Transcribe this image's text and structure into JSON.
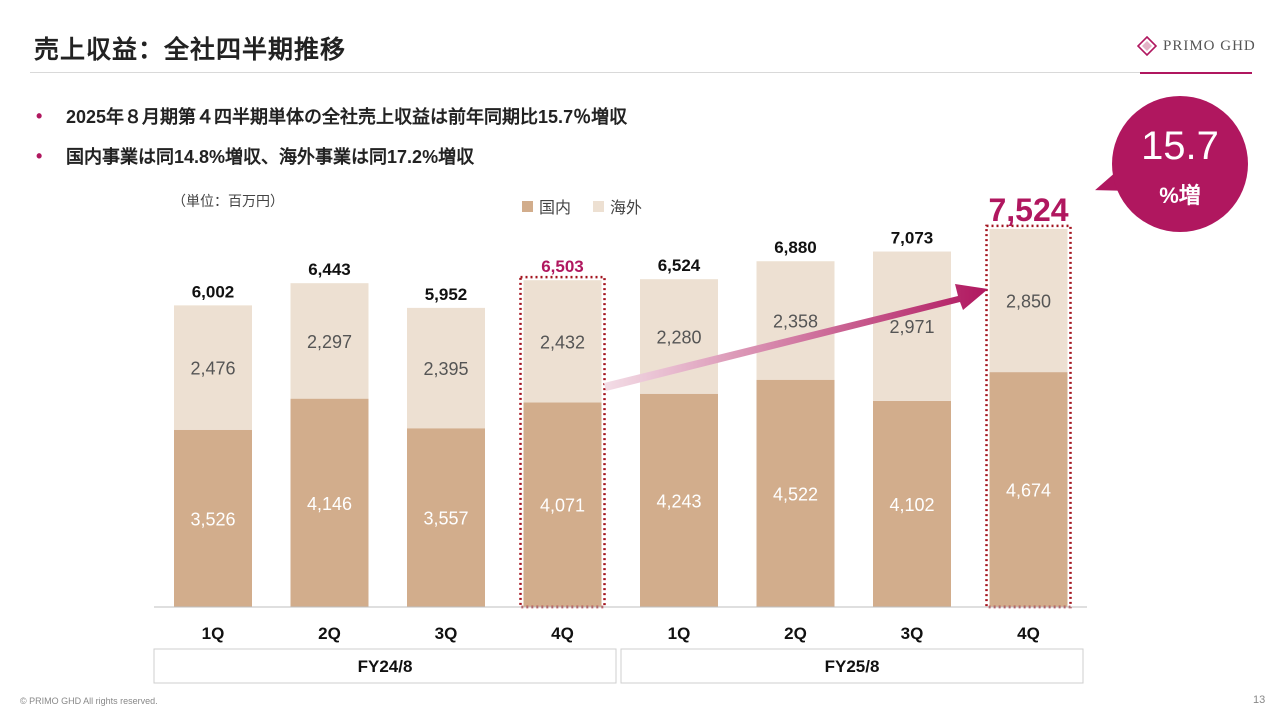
{
  "header": {
    "title": "売上収益：全社四半期推移",
    "logo_text": "PRIMO GHD"
  },
  "bullets": [
    "2025年８月期第４四半期単体の全社売上収益は前年同期比15.7％増収",
    "国内事業は同14.8%増収、海外事業は同17.2%増収"
  ],
  "badge": {
    "value": "15.7",
    "unit": "%増"
  },
  "unit_label": "（単位：百万円）",
  "footer": {
    "copyright": "© PRIMO GHD All rights reserved.",
    "page": "13"
  },
  "colors": {
    "domestic": "#d2ad8c",
    "overseas": "#ede0d2",
    "accent": "#b0175f",
    "highlight_border": "#a3141f"
  },
  "chart_data": {
    "type": "bar",
    "stacked": true,
    "categories": [
      "1Q",
      "2Q",
      "3Q",
      "4Q",
      "1Q",
      "2Q",
      "3Q",
      "4Q"
    ],
    "groups": [
      {
        "label": "FY24/8",
        "categories": [
          "1Q",
          "2Q",
          "3Q",
          "4Q"
        ]
      },
      {
        "label": "FY25/8",
        "categories": [
          "1Q",
          "2Q",
          "3Q",
          "4Q"
        ]
      }
    ],
    "series": [
      {
        "name": "国内",
        "values": [
          3526,
          4146,
          3557,
          4071,
          4243,
          4522,
          4102,
          4674
        ]
      },
      {
        "name": "海外",
        "values": [
          2476,
          2297,
          2395,
          2432,
          2280,
          2358,
          2971,
          2850
        ]
      }
    ],
    "totals": [
      6002,
      6443,
      5952,
      6503,
      6524,
      6880,
      7073,
      7524
    ],
    "highlighted_indices": [
      3,
      7
    ],
    "ylim": [
      0,
      7800
    ],
    "title": "",
    "xlabel": "",
    "ylabel": ""
  }
}
